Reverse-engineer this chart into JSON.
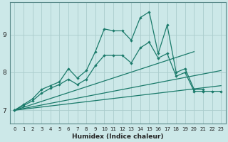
{
  "xlabel": "Humidex (Indice chaleur)",
  "bg_color": "#cce8e8",
  "grid_color": "#aacccc",
  "line_color": "#1a7a6a",
  "xlim": [
    -0.5,
    23.5
  ],
  "ylim": [
    6.65,
    9.85
  ],
  "yticks": [
    7,
    8,
    9
  ],
  "xticks": [
    0,
    1,
    2,
    3,
    4,
    5,
    6,
    7,
    8,
    9,
    10,
    11,
    12,
    13,
    14,
    15,
    16,
    17,
    18,
    19,
    20,
    21,
    22,
    23
  ],
  "fan1": {
    "x": [
      0,
      23
    ],
    "y": [
      7.0,
      7.65
    ]
  },
  "fan2": {
    "x": [
      0,
      23
    ],
    "y": [
      7.0,
      8.05
    ]
  },
  "fan3": {
    "x": [
      0,
      20
    ],
    "y": [
      7.0,
      8.55
    ]
  },
  "line_jagged1_x": [
    0,
    1,
    2,
    3,
    4,
    5,
    6,
    7,
    8,
    9,
    10,
    11,
    12,
    13,
    14,
    15,
    16,
    17,
    18,
    19,
    20,
    21
  ],
  "line_jagged1_y": [
    7.0,
    7.15,
    7.3,
    7.55,
    7.65,
    7.75,
    8.1,
    7.85,
    8.05,
    8.55,
    9.15,
    9.1,
    9.1,
    8.85,
    9.45,
    9.6,
    8.5,
    9.25,
    8.0,
    8.1,
    7.55,
    7.55
  ],
  "line_jagged2_x": [
    0,
    1,
    2,
    3,
    4,
    5,
    6,
    7,
    8,
    9,
    10,
    11,
    12,
    13,
    14,
    15,
    16,
    17,
    18,
    19,
    20,
    21,
    22,
    23
  ],
  "line_jagged2_y": [
    7.0,
    7.12,
    7.25,
    7.45,
    7.58,
    7.68,
    7.82,
    7.68,
    7.82,
    8.18,
    8.45,
    8.45,
    8.45,
    8.25,
    8.65,
    8.8,
    8.38,
    8.5,
    7.9,
    8.0,
    7.5,
    7.5,
    7.5,
    7.5
  ]
}
